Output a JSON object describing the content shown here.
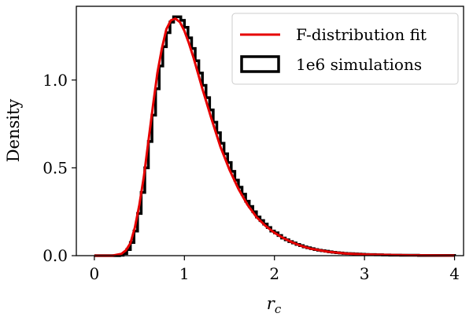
{
  "chart_data": {
    "type": "histogram+line",
    "xlabel": "r_c",
    "ylabel": "Density",
    "xlim": [
      -0.2,
      4.1
    ],
    "ylim": [
      0,
      1.42
    ],
    "xticks": [
      0,
      1,
      2,
      3,
      4
    ],
    "xtick_labels": [
      "0",
      "1",
      "2",
      "3",
      "4"
    ],
    "yticks": [
      0.0,
      0.5,
      1.0
    ],
    "ytick_labels": [
      "0.0",
      "0.5",
      "1.0"
    ],
    "legend_position": "upper-right",
    "grid": false,
    "series": [
      {
        "name": "F-distribution fit",
        "kind": "line",
        "color": "#e60000",
        "x": [
          0.0,
          0.2,
          0.3,
          0.35,
          0.4,
          0.45,
          0.5,
          0.55,
          0.6,
          0.65,
          0.7,
          0.75,
          0.8,
          0.85,
          0.9,
          0.95,
          1.0,
          1.05,
          1.1,
          1.15,
          1.2,
          1.3,
          1.4,
          1.5,
          1.6,
          1.7,
          1.8,
          1.9,
          2.0,
          2.1,
          2.2,
          2.3,
          2.4,
          2.6,
          2.8,
          3.0,
          3.5,
          4.0
        ],
        "y": [
          0.0,
          0.0,
          0.01,
          0.03,
          0.07,
          0.16,
          0.29,
          0.45,
          0.65,
          0.85,
          1.04,
          1.18,
          1.29,
          1.34,
          1.35,
          1.33,
          1.28,
          1.21,
          1.13,
          1.04,
          0.95,
          0.78,
          0.62,
          0.49,
          0.38,
          0.29,
          0.22,
          0.17,
          0.13,
          0.1,
          0.075,
          0.055,
          0.04,
          0.022,
          0.012,
          0.007,
          0.002,
          0.0007
        ]
      },
      {
        "name": "1e6 simulations",
        "kind": "step-histogram",
        "color": "#000000",
        "bin_edges": [
          0.0,
          0.04,
          0.08,
          0.12,
          0.16,
          0.2,
          0.24,
          0.28,
          0.32,
          0.36,
          0.4,
          0.44,
          0.48,
          0.52,
          0.56,
          0.6,
          0.64,
          0.68,
          0.72,
          0.76,
          0.8,
          0.84,
          0.88,
          0.92,
          0.96,
          1.0,
          1.04,
          1.08,
          1.12,
          1.16,
          1.2,
          1.24,
          1.28,
          1.32,
          1.36,
          1.4,
          1.44,
          1.48,
          1.52,
          1.56,
          1.6,
          1.64,
          1.68,
          1.72,
          1.76,
          1.8,
          1.84,
          1.88,
          1.92,
          1.96,
          2.0,
          2.04,
          2.08,
          2.12,
          2.16,
          2.2,
          2.24,
          2.28,
          2.32,
          2.36,
          2.4,
          2.44,
          2.48,
          2.52,
          2.56,
          2.6,
          2.64,
          2.68,
          2.72,
          2.76,
          2.8,
          2.84,
          2.88,
          2.92,
          2.96,
          3.0,
          3.04,
          3.08,
          3.12,
          3.16,
          3.2,
          3.24,
          3.28,
          3.32,
          3.36,
          3.4,
          3.44,
          3.48,
          3.52,
          3.56,
          3.6,
          3.64,
          3.68,
          3.72,
          3.76,
          3.8,
          3.84,
          3.88,
          3.92,
          3.96,
          4.0
        ],
        "values": [
          0.0,
          0.0,
          0.0,
          0.0,
          0.0,
          0.0,
          0.0,
          0.002,
          0.012,
          0.035,
          0.075,
          0.14,
          0.24,
          0.36,
          0.5,
          0.65,
          0.8,
          0.95,
          1.08,
          1.19,
          1.27,
          1.33,
          1.36,
          1.36,
          1.34,
          1.3,
          1.24,
          1.18,
          1.11,
          1.04,
          0.97,
          0.9,
          0.83,
          0.76,
          0.7,
          0.64,
          0.58,
          0.53,
          0.48,
          0.43,
          0.39,
          0.35,
          0.31,
          0.28,
          0.25,
          0.22,
          0.2,
          0.18,
          0.16,
          0.14,
          0.13,
          0.115,
          0.1,
          0.09,
          0.08,
          0.072,
          0.064,
          0.057,
          0.05,
          0.045,
          0.04,
          0.035,
          0.031,
          0.028,
          0.025,
          0.022,
          0.019,
          0.017,
          0.015,
          0.013,
          0.012,
          0.011,
          0.01,
          0.009,
          0.008,
          0.007,
          0.006,
          0.006,
          0.005,
          0.005,
          0.004,
          0.004,
          0.003,
          0.003,
          0.003,
          0.002,
          0.002,
          0.002,
          0.002,
          0.002,
          0.001,
          0.001,
          0.001,
          0.001,
          0.001,
          0.001,
          0.001,
          0.001,
          0.001,
          0.001
        ]
      }
    ]
  }
}
